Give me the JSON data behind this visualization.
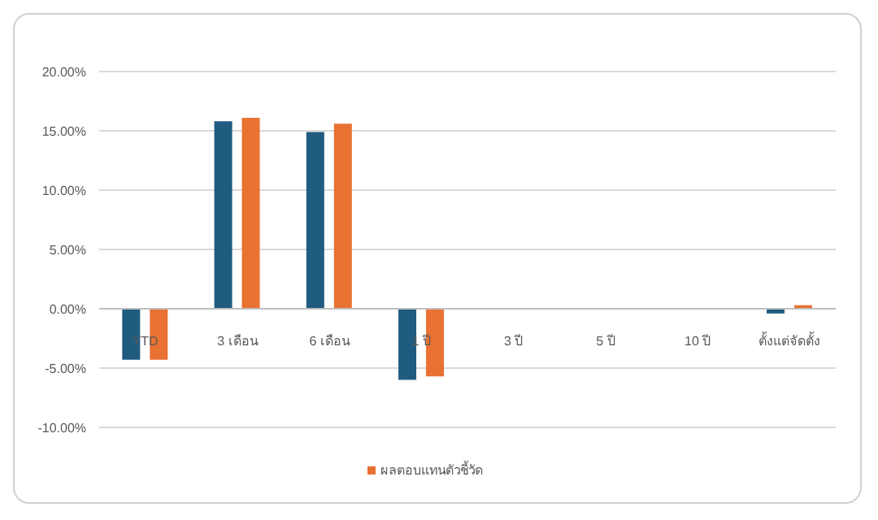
{
  "chart_data": {
    "type": "bar",
    "categories": [
      "YTD",
      "3 เดือน",
      "6 เดือน",
      "1 ปี",
      "3 ปี",
      "5 ปี",
      "10 ปี",
      "ตั้งแต่จัดตั้ง"
    ],
    "series": [
      {
        "color": "#1f5c80",
        "values": [
          -4.3,
          15.8,
          14.9,
          -6.0,
          null,
          null,
          null,
          -0.4
        ]
      },
      {
        "name": "ผลตอบแทนตัวชี้วัด",
        "color": "#e97132",
        "values": [
          -4.3,
          16.1,
          15.6,
          -5.7,
          null,
          null,
          null,
          0.3
        ]
      }
    ],
    "ylim": [
      -10,
      20
    ],
    "yticks": [
      {
        "value": -10,
        "label": "-10.00%"
      },
      {
        "value": -5,
        "label": "-5.00%"
      },
      {
        "value": 0,
        "label": "0.00%"
      },
      {
        "value": 5,
        "label": "5.00%"
      },
      {
        "value": 10,
        "label": "10.00%"
      },
      {
        "value": 15,
        "label": "15.00%"
      },
      {
        "value": 20,
        "label": "20.00%"
      }
    ],
    "grid": "y",
    "legend": "bottom"
  }
}
